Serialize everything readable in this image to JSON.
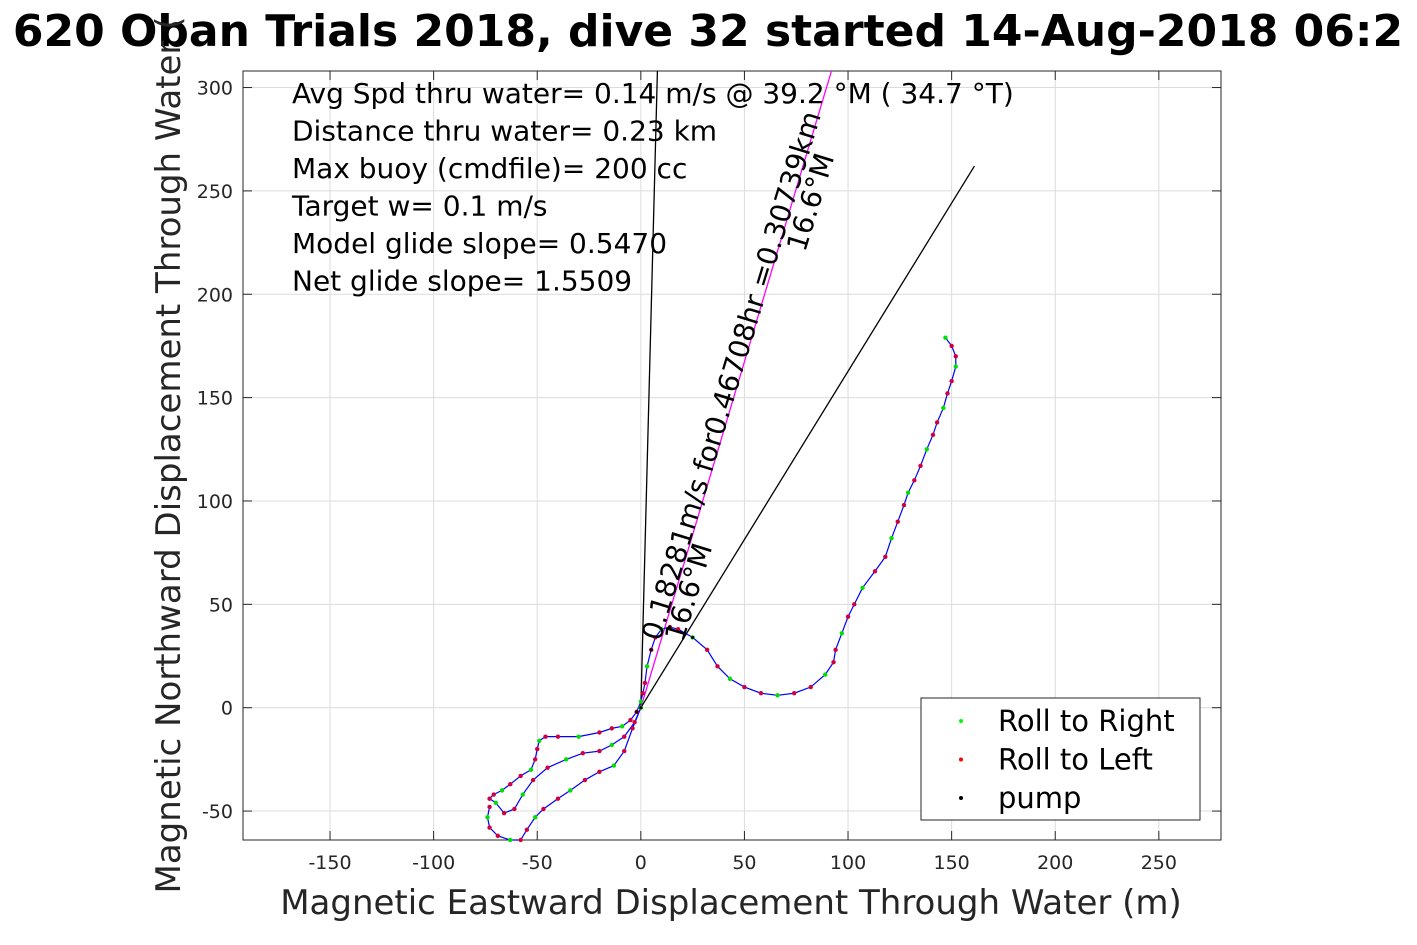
{
  "chart_data": {
    "type": "scatter",
    "title": "620 Oban Trials 2018, dive 32 started 14-Aug-2018 06:2",
    "xlabel": "Magnetic Eastward Displacement Through Water (m)",
    "ylabel": "Magnetic Northward Displacement Through Water (",
    "xlim": [
      -192,
      280
    ],
    "ylim": [
      -64,
      308
    ],
    "xticks": [
      -150,
      -100,
      -50,
      0,
      50,
      100,
      150,
      200,
      250
    ],
    "yticks": [
      -50,
      0,
      50,
      100,
      150,
      200,
      250,
      300
    ],
    "grid": true,
    "annotations": [
      "Avg Spd thru water=  0.14 m/s @  39.2 °M ( 34.7 °T)",
      "Distance thru water=  0.23 km",
      "Max buoy (cmdfile)= 200 cc",
      "Target w= 0.1 m/s",
      "Model glide slope= 0.5470",
      "Net glide slope= 1.5509"
    ],
    "current_label_1": "0.18281m/s for0.46708hr =0.30739km",
    "current_label_2": "16.6°M",
    "current_label_3": "16.6°M",
    "legend": {
      "placement": "bottom-right",
      "entries": [
        {
          "label": "Roll to Right",
          "color": "#00ff00"
        },
        {
          "label": "Roll to Left",
          "color": "#ff0000"
        },
        {
          "label": "pump",
          "color": "#000000"
        }
      ]
    },
    "track": [
      [
        0,
        0
      ],
      [
        -3,
        -7
      ],
      [
        -8,
        -14
      ],
      [
        -14,
        -18
      ],
      [
        -20,
        -21
      ],
      [
        -28,
        -22
      ],
      [
        -36,
        -25
      ],
      [
        -45,
        -29
      ],
      [
        -52,
        -35
      ],
      [
        -57,
        -42
      ],
      [
        -61,
        -49
      ],
      [
        -66,
        -51
      ],
      [
        -70,
        -46
      ],
      [
        -73,
        -44
      ],
      [
        -71,
        -42
      ],
      [
        -67,
        -40
      ],
      [
        -63,
        -37
      ],
      [
        -58,
        -33
      ],
      [
        -53,
        -30
      ],
      [
        -51,
        -25
      ],
      [
        -50,
        -20
      ],
      [
        -49,
        -16
      ],
      [
        -46,
        -14
      ],
      [
        -40,
        -14
      ],
      [
        -30,
        -14
      ],
      [
        -20,
        -12
      ],
      [
        -14,
        -10
      ],
      [
        -9,
        -9
      ],
      [
        -5,
        -6
      ],
      [
        -2,
        -2
      ],
      [
        0,
        3
      ],
      [
        1,
        7
      ],
      [
        2,
        12
      ],
      [
        3,
        20
      ],
      [
        5,
        28
      ],
      [
        7,
        34
      ],
      [
        10,
        38
      ],
      [
        14,
        39
      ],
      [
        18,
        38
      ],
      [
        25,
        34
      ],
      [
        32,
        28
      ],
      [
        37,
        20
      ],
      [
        43,
        14
      ],
      [
        50,
        10
      ],
      [
        58,
        7
      ],
      [
        66,
        6
      ],
      [
        74,
        7
      ],
      [
        82,
        10
      ],
      [
        89,
        16
      ],
      [
        93,
        22
      ],
      [
        94,
        28
      ],
      [
        97,
        36
      ],
      [
        100,
        44
      ],
      [
        103,
        50
      ],
      [
        107,
        58
      ],
      [
        113,
        66
      ],
      [
        118,
        73
      ],
      [
        121,
        82
      ],
      [
        124,
        90
      ],
      [
        127,
        98
      ],
      [
        129,
        104
      ],
      [
        132,
        110
      ],
      [
        135,
        117
      ],
      [
        138,
        125
      ],
      [
        141,
        132
      ],
      [
        143,
        138
      ],
      [
        146,
        145
      ],
      [
        148,
        152
      ],
      [
        150,
        158
      ],
      [
        152,
        165
      ],
      [
        152,
        170
      ],
      [
        150,
        175
      ],
      [
        147,
        179
      ]
    ],
    "return_track": [
      [
        0,
        0
      ],
      [
        -4,
        -10
      ],
      [
        -8,
        -21
      ],
      [
        -13,
        -28
      ],
      [
        -20,
        -31
      ],
      [
        -27,
        -35
      ],
      [
        -34,
        -40
      ],
      [
        -40,
        -44
      ],
      [
        -47,
        -49
      ],
      [
        -51,
        -53
      ],
      [
        -55,
        -59
      ],
      [
        -58,
        -64
      ],
      [
        -63,
        -64
      ],
      [
        -69,
        -62
      ],
      [
        -73,
        -58
      ],
      [
        -74,
        -53
      ],
      [
        -73,
        -48
      ]
    ],
    "pump_points": [
      [
        0,
        0
      ],
      [
        5,
        28
      ],
      [
        14,
        39
      ],
      [
        25,
        34
      ],
      [
        -2,
        -2
      ]
    ],
    "lines": [
      {
        "from": [
          0,
          0
        ],
        "to": [
          8,
          308
        ],
        "color": "#000000"
      },
      {
        "from": [
          0,
          0
        ],
        "to": [
          92,
          308
        ],
        "color": "#ff00ff"
      },
      {
        "from": [
          0,
          0
        ],
        "to": [
          161,
          262
        ],
        "color": "#000000"
      }
    ]
  }
}
